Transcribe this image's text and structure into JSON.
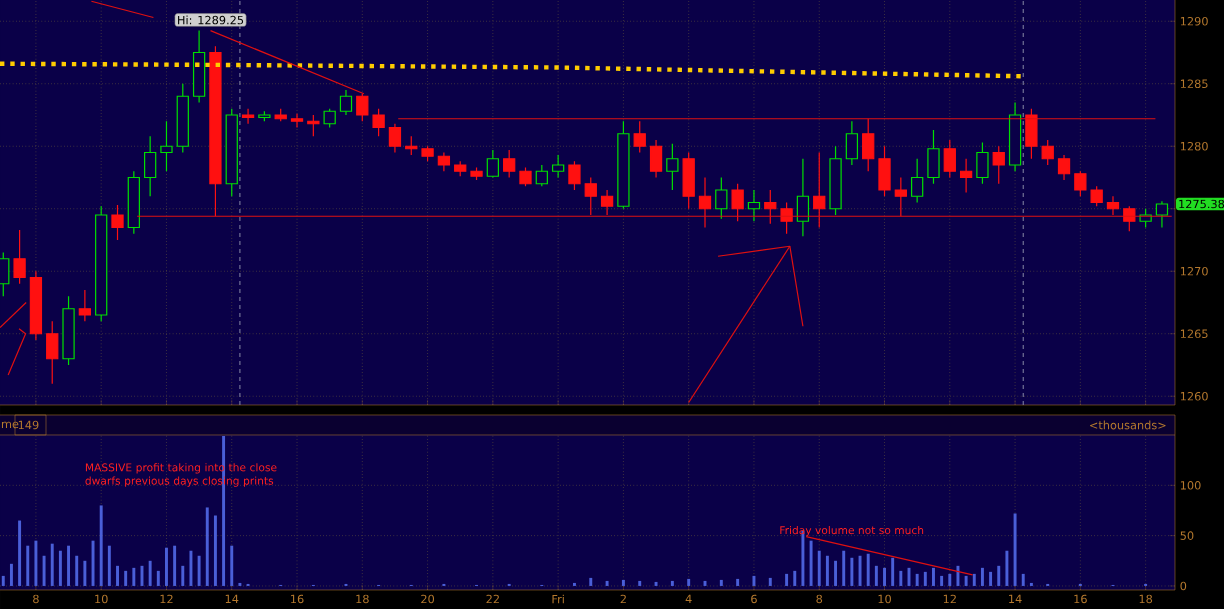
{
  "chart_data": [
    {
      "type": "candlestick",
      "xlim": [
        "--01-05T06:54",
        "--01-06T18:54"
      ],
      "ylim": [
        1259.3,
        1291.7
      ],
      "yticks": [
        1260,
        1265,
        1270,
        {
          "value": 1275,
          "label": null
        },
        1280,
        1285,
        1290
      ],
      "grid": true,
      "tick_labels": "y",
      "xticks": [
        {
          "value": "--01-05T08:00",
          "label": null
        },
        {
          "value": "--01-05T10:00",
          "label": null
        },
        {
          "value": "--01-05T12:00",
          "label": null
        },
        {
          "value": "--01-05T14:00",
          "label": null
        },
        {
          "value": "--01-05T16:00",
          "label": null
        },
        {
          "value": "--01-05T18:00",
          "label": null
        },
        {
          "value": "--01-05T20:00",
          "label": null
        },
        {
          "value": "--01-05T22:00",
          "label": null
        },
        {
          "value": "--01-06T00:00",
          "label": null
        },
        {
          "value": "--01-06T02:00",
          "label": null
        },
        {
          "value": "--01-06T04:00",
          "label": null
        },
        {
          "value": "--01-06T06:00",
          "label": null
        },
        {
          "value": "--01-06T08:00",
          "label": null
        },
        {
          "value": "--01-06T10:00",
          "label": null
        },
        {
          "value": "--01-06T12:00",
          "label": null
        },
        {
          "value": "--01-06T14:00",
          "label": null
        },
        {
          "value": "--01-06T16:00",
          "label": null
        },
        {
          "value": "--01-06T18:00",
          "label": null
        }
      ],
      "x": [
        "--01-05T07:00",
        "--01-05T07:30",
        "--01-05T08:00",
        "--01-05T08:30",
        "--01-05T09:00",
        "--01-05T09:30",
        "--01-05T10:00",
        "--01-05T10:30",
        "--01-05T11:00",
        "--01-05T11:30",
        "--01-05T12:00",
        "--01-05T12:30",
        "--01-05T13:00",
        "--01-05T13:30",
        "--01-05T14:00",
        "--01-05T14:30",
        "--01-05T15:00",
        "--01-05T15:30",
        "--01-05T16:00",
        "--01-05T16:30",
        "--01-05T17:00",
        "--01-05T17:30",
        "--01-05T18:00",
        "--01-05T18:30",
        "--01-05T19:00",
        "--01-05T19:30",
        "--01-05T20:00",
        "--01-05T20:30",
        "--01-05T21:00",
        "--01-05T21:30",
        "--01-05T22:00",
        "--01-05T22:30",
        "--01-05T23:00",
        "--01-05T23:30",
        "--01-06T00:00",
        "--01-06T00:30",
        "--01-06T01:00",
        "--01-06T01:30",
        "--01-06T02:00",
        "--01-06T02:30",
        "--01-06T03:00",
        "--01-06T03:30",
        "--01-06T04:00",
        "--01-06T04:30",
        "--01-06T05:00",
        "--01-06T05:30",
        "--01-06T06:00",
        "--01-06T06:30",
        "--01-06T07:00",
        "--01-06T07:30",
        "--01-06T08:00",
        "--01-06T08:30",
        "--01-06T09:00",
        "--01-06T09:30",
        "--01-06T10:00",
        "--01-06T10:30",
        "--01-06T11:00",
        "--01-06T11:30",
        "--01-06T12:00",
        "--01-06T12:30",
        "--01-06T13:00",
        "--01-06T13:30",
        "--01-06T14:00",
        "--01-06T14:30",
        "--01-06T15:00",
        "--01-06T15:30",
        "--01-06T16:00",
        "--01-06T16:30",
        "--01-06T17:00",
        "--01-06T17:30",
        "--01-06T18:00",
        "--01-06T18:30"
      ],
      "ohlc": [
        [
          1269,
          1271.5,
          1268,
          1271
        ],
        [
          1271,
          1273.3,
          1269,
          1269.5
        ],
        [
          1269.5,
          1270,
          1264.5,
          1265
        ],
        [
          1265,
          1266,
          1261,
          1263
        ],
        [
          1263,
          1268,
          1262.5,
          1267
        ],
        [
          1267,
          1268.5,
          1266,
          1266.5
        ],
        [
          1266.5,
          1275.2,
          1266,
          1274.5
        ],
        [
          1274.5,
          1275.3,
          1272.5,
          1273.5
        ],
        [
          1273.5,
          1278,
          1273,
          1277.5
        ],
        [
          1277.5,
          1280.8,
          1276,
          1279.5
        ],
        [
          1279.5,
          1282,
          1278,
          1280
        ],
        [
          1280,
          1285,
          1279.5,
          1284
        ],
        [
          1284,
          1289.25,
          1283.5,
          1287.5
        ],
        [
          1287.5,
          1288,
          1274.4,
          1277
        ],
        [
          1277,
          1283,
          1276,
          1282.5
        ],
        [
          1282.5,
          1283,
          1281.8,
          1282.3
        ],
        [
          1282.3,
          1282.8,
          1282,
          1282.5
        ],
        [
          1282.5,
          1283,
          1282,
          1282.2
        ],
        [
          1282.2,
          1282.6,
          1281.5,
          1282
        ],
        [
          1282,
          1282.5,
          1280.8,
          1281.8
        ],
        [
          1281.8,
          1283,
          1281.5,
          1282.8
        ],
        [
          1282.8,
          1284.5,
          1282.5,
          1284
        ],
        [
          1284,
          1284.2,
          1282,
          1282.5
        ],
        [
          1282.5,
          1283,
          1280.8,
          1281.5
        ],
        [
          1281.5,
          1281.8,
          1279.5,
          1280
        ],
        [
          1280,
          1280.8,
          1279.3,
          1279.8
        ],
        [
          1279.8,
          1280,
          1278.8,
          1279.2
        ],
        [
          1279.2,
          1279.5,
          1278,
          1278.5
        ],
        [
          1278.5,
          1278.8,
          1277.6,
          1278
        ],
        [
          1278,
          1278.3,
          1277.3,
          1277.6
        ],
        [
          1277.6,
          1279.7,
          1277.5,
          1279
        ],
        [
          1279,
          1279.7,
          1277.5,
          1278
        ],
        [
          1278,
          1278.3,
          1276.8,
          1277
        ],
        [
          1277,
          1278.5,
          1276.8,
          1278
        ],
        [
          1278,
          1279.3,
          1277.5,
          1278.5
        ],
        [
          1278.5,
          1278.8,
          1276.5,
          1277
        ],
        [
          1277,
          1277.5,
          1274.5,
          1276
        ],
        [
          1276,
          1276.5,
          1274.5,
          1275.2
        ],
        [
          1275.2,
          1282,
          1275,
          1281
        ],
        [
          1281,
          1282,
          1279.5,
          1280
        ],
        [
          1280,
          1280.5,
          1277.5,
          1278
        ],
        [
          1278,
          1280.2,
          1276.5,
          1279
        ],
        [
          1279,
          1279.5,
          1275,
          1276
        ],
        [
          1276,
          1277.5,
          1273.5,
          1275
        ],
        [
          1275,
          1277.5,
          1274.2,
          1276.5
        ],
        [
          1276.5,
          1277,
          1274,
          1275
        ],
        [
          1275,
          1276.5,
          1274,
          1275.5
        ],
        [
          1275.5,
          1276.5,
          1273.8,
          1275
        ],
        [
          1275,
          1275.5,
          1273,
          1274
        ],
        [
          1274,
          1279,
          1272.8,
          1276
        ],
        [
          1276,
          1279.5,
          1273.5,
          1275
        ],
        [
          1275,
          1280,
          1274.5,
          1279
        ],
        [
          1279,
          1282,
          1278.5,
          1281
        ],
        [
          1281,
          1282.2,
          1278,
          1279
        ],
        [
          1279,
          1280,
          1276,
          1276.5
        ],
        [
          1276.5,
          1277.5,
          1274.4,
          1276
        ],
        [
          1276,
          1279,
          1275.5,
          1277.5
        ],
        [
          1277.5,
          1281.3,
          1277,
          1279.8
        ],
        [
          1279.8,
          1280.5,
          1277.5,
          1278
        ],
        [
          1278,
          1279,
          1276.3,
          1277.5
        ],
        [
          1277.5,
          1280.3,
          1277,
          1279.5
        ],
        [
          1279.5,
          1280,
          1277,
          1278.5
        ],
        [
          1278.5,
          1283.5,
          1278,
          1282.5
        ],
        [
          1282.5,
          1283,
          1279,
          1280
        ],
        [
          1280,
          1280.5,
          1278.5,
          1279
        ],
        [
          1279,
          1279.3,
          1277.3,
          1277.8
        ],
        [
          1277.8,
          1278,
          1276,
          1276.5
        ],
        [
          1276.5,
          1276.8,
          1275.2,
          1275.5
        ],
        [
          1275.5,
          1276,
          1274.5,
          1275
        ],
        [
          1275,
          1275.2,
          1273.2,
          1274
        ],
        [
          1274,
          1275,
          1273.5,
          1274.5
        ],
        [
          1274.5,
          1275.6,
          1273.5,
          1275.38
        ]
      ],
      "colors": [
        "#00e000",
        "#ff1010",
        "#ff1010",
        "#ff1010",
        "#00e000",
        "#ff1010",
        "#00e000",
        "#ff1010",
        "#00e000",
        "#00e000",
        "#00e000",
        "#00e000",
        "#00e000",
        "#ff1010",
        "#00e000",
        "#ff1010",
        "#00e000",
        "#ff1010",
        "#ff1010",
        "#ff1010",
        "#00e000",
        "#00e000",
        "#ff1010",
        "#ff1010",
        "#ff1010",
        "#ff1010",
        "#ff1010",
        "#ff1010",
        "#ff1010",
        "#ff1010",
        "#00e000",
        "#ff1010",
        "#ff1010",
        "#00e000",
        "#00e000",
        "#ff1010",
        "#ff1010",
        "#ff1010",
        "#00e000",
        "#ff1010",
        "#ff1010",
        "#00e000",
        "#ff1010",
        "#ff1010",
        "#00e000",
        "#ff1010",
        "#00e000",
        "#ff1010",
        "#ff1010",
        "#00e000",
        "#ff1010",
        "#00e000",
        "#00e000",
        "#ff1010",
        "#ff1010",
        "#ff1010",
        "#00e000",
        "#00e000",
        "#ff1010",
        "#ff1010",
        "#00e000",
        "#ff1010",
        "#00e000",
        "#ff1010",
        "#ff1010",
        "#ff1010",
        "#ff1010",
        "#ff1010",
        "#ff1010",
        "#ff1010",
        "#00e000",
        "#00e000"
      ],
      "series": [
        {
          "type": "line",
          "x": [
            "--01-05T06:54",
            "--01-05T14:00",
            "--01-06T00:00",
            "--01-06T06:00",
            "--01-06T14:12"
          ],
          "values": [
            1286.6,
            1286.5,
            1286.3,
            1286,
            1285.6
          ],
          "color": "#ffcc00",
          "line_style": "dotted"
        },
        {
          "type": "line",
          "x": [
            "--01-05T19:06",
            "--01-06T18:18"
          ],
          "values": [
            1282.2,
            1282.2
          ],
          "color": "#e01010"
        },
        {
          "type": "line",
          "x": [
            "--01-05T11:06",
            "--01-06T18:48"
          ],
          "values": [
            1274.4,
            1274.4
          ],
          "color": "#e01010"
        },
        {
          "type": "line",
          "x": [
            "--01-05T13:21",
            "--01-05T18:03"
          ],
          "values": [
            1289.25,
            1284.2
          ],
          "color": "#e01010"
        },
        {
          "type": "line",
          "x": [
            "--01-05T09:42",
            "--01-05T11:36"
          ],
          "values": [
            1291.6,
            1290.3
          ],
          "color": "#e01010"
        },
        {
          "type": "line",
          "x": [
            "--01-05T06:54",
            "--01-05T07:42"
          ],
          "values": [
            1265.5,
            1267.5
          ],
          "color": "#e01010"
        },
        {
          "type": "line",
          "x": [
            "--01-05T07:29",
            "--01-05T07:41",
            "--01-05T07:09"
          ],
          "values": [
            1265.4,
            1265,
            1261.7
          ],
          "color": "#e01010"
        },
        {
          "type": "line",
          "x": [
            "--01-06T04:00",
            "--01-06T07:06"
          ],
          "values": [
            1259.5,
            1272
          ],
          "color": "#e01010"
        },
        {
          "type": "line",
          "x": [
            "--01-06T04:54",
            "--01-06T07:06",
            "--01-06T07:30"
          ],
          "values": [
            1271.2,
            1272,
            1265.6
          ],
          "color": "#e01010"
        }
      ],
      "ref_lines": [
        {
          "axis": "x",
          "value": "--01-05T14:15",
          "color": "#8080a0",
          "line_style": "dashed"
        },
        {
          "axis": "x",
          "value": "--01-06T14:15",
          "color": "#8080a0",
          "line_style": "dashed"
        }
      ],
      "annotations": [
        {
          "text": "Hi: 1289.25",
          "x": "--01-05T13:21",
          "y": 1289.25
        },
        {
          "text": "1275.38",
          "x": "--01-06T18:48",
          "y": 1275.38
        }
      ]
    },
    {
      "type": "bar",
      "xlim": [
        "--01-05T06:54",
        "--01-06T18:54"
      ],
      "ylim": [
        -4,
        150
      ],
      "yticks": [
        0,
        50,
        100
      ],
      "grid": true,
      "xticks": [
        {
          "value": "--01-05T08:00",
          "label": "8"
        },
        {
          "value": "--01-05T10:00",
          "label": "10"
        },
        {
          "value": "--01-05T12:00",
          "label": "12"
        },
        {
          "value": "--01-05T14:00",
          "label": "14"
        },
        {
          "value": "--01-05T16:00",
          "label": "16"
        },
        {
          "value": "--01-05T18:00",
          "label": "18"
        },
        {
          "value": "--01-05T20:00",
          "label": "20"
        },
        {
          "value": "--01-05T22:00",
          "label": "22"
        },
        {
          "value": "--01-06T00:00",
          "label": "Fri"
        },
        {
          "value": "--01-06T02:00",
          "label": "2"
        },
        {
          "value": "--01-06T04:00",
          "label": "4"
        },
        {
          "value": "--01-06T06:00",
          "label": "6"
        },
        {
          "value": "--01-06T08:00",
          "label": "8"
        },
        {
          "value": "--01-06T10:00",
          "label": "10"
        },
        {
          "value": "--01-06T12:00",
          "label": "12"
        },
        {
          "value": "--01-06T14:00",
          "label": "14"
        },
        {
          "value": "--01-06T16:00",
          "label": "16"
        },
        {
          "value": "--01-06T18:00",
          "label": "18"
        }
      ],
      "series": [
        {
          "color": "#4a5fd8",
          "x": [
            "--01-05T07:00",
            "--01-05T07:15",
            "--01-05T07:30",
            "--01-05T07:45",
            "--01-05T08:00",
            "--01-05T08:15",
            "--01-05T08:30",
            "--01-05T08:45",
            "--01-05T09:00",
            "--01-05T09:15",
            "--01-05T09:30",
            "--01-05T09:45",
            "--01-05T10:00",
            "--01-05T10:15",
            "--01-05T10:30",
            "--01-05T10:45",
            "--01-05T11:00",
            "--01-05T11:15",
            "--01-05T11:30",
            "--01-05T11:45",
            "--01-05T12:00",
            "--01-05T12:15",
            "--01-05T12:30",
            "--01-05T12:45",
            "--01-05T13:00",
            "--01-05T13:15",
            "--01-05T13:30",
            "--01-05T13:45",
            "--01-05T14:00",
            "--01-05T14:15",
            "--01-05T14:30",
            "--01-05T15:30",
            "--01-05T16:30",
            "--01-05T17:30",
            "--01-05T18:30",
            "--01-05T19:30",
            "--01-05T20:30",
            "--01-05T21:30",
            "--01-05T22:30",
            "--01-05T23:30",
            "--01-06T00:30",
            "--01-06T01:00",
            "--01-06T01:30",
            "--01-06T02:00",
            "--01-06T02:30",
            "--01-06T03:00",
            "--01-06T03:30",
            "--01-06T04:00",
            "--01-06T04:30",
            "--01-06T05:00",
            "--01-06T05:30",
            "--01-06T06:00",
            "--01-06T06:30",
            "--01-06T07:00",
            "--01-06T07:15",
            "--01-06T07:30",
            "--01-06T07:45",
            "--01-06T08:00",
            "--01-06T08:15",
            "--01-06T08:30",
            "--01-06T08:45",
            "--01-06T09:00",
            "--01-06T09:15",
            "--01-06T09:30",
            "--01-06T09:45",
            "--01-06T10:00",
            "--01-06T10:15",
            "--01-06T10:30",
            "--01-06T10:45",
            "--01-06T11:00",
            "--01-06T11:15",
            "--01-06T11:30",
            "--01-06T11:45",
            "--01-06T12:00",
            "--01-06T12:15",
            "--01-06T12:30",
            "--01-06T12:45",
            "--01-06T13:00",
            "--01-06T13:15",
            "--01-06T13:30",
            "--01-06T13:45",
            "--01-06T14:00",
            "--01-06T14:15",
            "--01-06T14:30",
            "--01-06T15:00",
            "--01-06T16:00",
            "--01-06T17:00",
            "--01-06T18:00"
          ],
          "values": [
            10,
            22,
            65,
            40,
            45,
            30,
            42,
            35,
            40,
            30,
            25,
            45,
            80,
            40,
            20,
            15,
            18,
            20,
            25,
            15,
            38,
            40,
            20,
            35,
            30,
            78,
            70,
            149,
            40,
            3,
            2,
            1,
            1,
            2,
            1,
            1,
            2,
            1,
            2,
            1,
            3,
            8,
            5,
            6,
            5,
            4,
            5,
            7,
            5,
            6,
            7,
            10,
            8,
            12,
            15,
            55,
            45,
            35,
            30,
            25,
            35,
            28,
            30,
            32,
            20,
            18,
            28,
            15,
            18,
            12,
            14,
            18,
            10,
            12,
            20,
            10,
            12,
            18,
            14,
            20,
            35,
            72,
            12,
            3,
            2,
            2,
            1,
            2
          ]
        },
        {
          "type": "line",
          "x": [
            "--01-06T07:36",
            "--01-06T12:42"
          ],
          "values": [
            49,
            11
          ],
          "color": "#e01010"
        }
      ],
      "annotations": [
        "me",
        "149",
        "<thousands>",
        "MASSIVE profit taking into the close dwarfs previous days closing prints",
        "Friday volume not so much"
      ]
    }
  ]
}
